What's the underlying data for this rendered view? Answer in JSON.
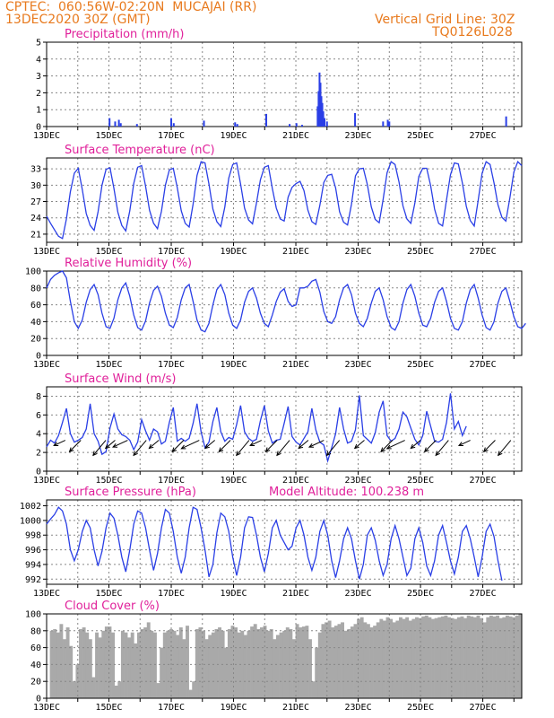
{
  "header": {
    "line1": "CPTEC:  060:56W-02:20N  MUCAJAI (RR)",
    "line2": "13DEC2020 30Z (GMT)",
    "right1": "Vertical Grid Line: 30Z",
    "right2": "TQ0126L028"
  },
  "colors": {
    "header": "#e87a1e",
    "title": "#e0209a",
    "line": "#2a3fe6",
    "cloud": "#a9a9a9",
    "wind_arrow": "#000000"
  },
  "chart_data": [
    {
      "type": "bar",
      "title": "Precipitation (mm/h)",
      "ylim": [
        0,
        5
      ],
      "yticks": [
        "0",
        "1",
        "2",
        "3",
        "4",
        "5"
      ],
      "xticks": [
        "13DEC",
        "15DEC",
        "17DEC",
        "19DEC",
        "21DEC",
        "23DEC",
        "25DEC",
        "27DEC"
      ],
      "x_start_day": 13.25,
      "x_end_day": 28.25,
      "events": [
        [
          15.02,
          0.5
        ],
        [
          15.2,
          0.3
        ],
        [
          15.32,
          0.4
        ],
        [
          15.38,
          0.2
        ],
        [
          15.9,
          0.15
        ],
        [
          17.0,
          0.5
        ],
        [
          17.08,
          0.2
        ],
        [
          18.05,
          0.35
        ],
        [
          19.05,
          0.25
        ],
        [
          19.12,
          0.15
        ],
        [
          20.05,
          0.75
        ],
        [
          20.8,
          0.15
        ],
        [
          21.02,
          0.2
        ],
        [
          21.2,
          0.1
        ],
        [
          21.7,
          1.2
        ],
        [
          21.73,
          2.1
        ],
        [
          21.76,
          3.2
        ],
        [
          21.79,
          2.6
        ],
        [
          21.82,
          1.8
        ],
        [
          21.85,
          1.4
        ],
        [
          21.88,
          0.9
        ],
        [
          21.92,
          0.5
        ],
        [
          22.0,
          0.3
        ],
        [
          22.9,
          0.8
        ],
        [
          23.8,
          0.3
        ],
        [
          23.95,
          0.4
        ],
        [
          24.0,
          0.3
        ],
        [
          27.75,
          0.6
        ]
      ]
    },
    {
      "type": "line",
      "title": "Surface Temperature (nC)",
      "ylim": [
        19.5,
        35
      ],
      "yticks": [
        "21",
        "24",
        "27",
        "30",
        "33"
      ],
      "xticks": [
        "13DEC",
        "15DEC",
        "17DEC",
        "19DEC",
        "21DEC",
        "23DEC",
        "25DEC",
        "27DEC"
      ],
      "x_start_day": 13.25,
      "series": [
        {
          "values": [
            24.3,
            23.0,
            21.8,
            20.6,
            20.2,
            23.8,
            28.8,
            32.2,
            33.1,
            29.2,
            24.8,
            22.6,
            21.7,
            25.1,
            30.0,
            32.9,
            33.2,
            29.4,
            25.0,
            22.6,
            21.6,
            25.3,
            30.3,
            33.3,
            33.6,
            29.8,
            25.4,
            23.0,
            22.0,
            25.2,
            30.0,
            32.8,
            33.1,
            29.5,
            25.3,
            23.0,
            22.3,
            26.5,
            31.8,
            34.3,
            34.1,
            30.2,
            25.6,
            23.3,
            22.4,
            26.0,
            31.3,
            33.8,
            34.1,
            30.2,
            25.8,
            23.6,
            22.9,
            26.7,
            31.0,
            33.3,
            33.6,
            29.4,
            25.8,
            23.8,
            23.4,
            27.8,
            29.6,
            30.3,
            30.7,
            29.0,
            25.4,
            23.3,
            22.8,
            26.3,
            30.5,
            31.8,
            32.0,
            29.5,
            25.1,
            23.2,
            22.7,
            26.5,
            31.7,
            33.0,
            33.1,
            30.1,
            26.0,
            23.7,
            23.1,
            27.4,
            32.3,
            34.3,
            33.8,
            30.6,
            26.2,
            23.8,
            23.0,
            26.7,
            31.6,
            33.1,
            33.1,
            29.9,
            25.6,
            23.0,
            22.5,
            27.3,
            31.9,
            34.1,
            33.9,
            30.4,
            26.1,
            23.5,
            22.5,
            27.2,
            32.2,
            34.3,
            33.8,
            30.4,
            26.4,
            24.1,
            23.4,
            27.7,
            32.4,
            34.3,
            33.6
          ]
        }
      ]
    },
    {
      "type": "line",
      "title": "Relative Humidity (%)",
      "ylim": [
        0,
        100
      ],
      "yticks": [
        "0",
        "20",
        "40",
        "60",
        "80",
        "100"
      ],
      "xticks": [
        "13DEC",
        "15DEC",
        "17DEC",
        "19DEC",
        "21DEC",
        "23DEC",
        "25DEC",
        "27DEC"
      ],
      "x_start_day": 13.25,
      "series": [
        {
          "values": [
            80,
            90,
            95,
            98,
            100,
            92,
            64,
            40,
            32,
            42,
            63,
            78,
            84,
            72,
            50,
            34,
            32,
            44,
            66,
            80,
            86,
            70,
            48,
            33,
            30,
            41,
            62,
            77,
            82,
            70,
            50,
            36,
            33,
            45,
            66,
            80,
            84,
            64,
            42,
            30,
            28,
            38,
            60,
            78,
            84,
            72,
            50,
            36,
            32,
            42,
            63,
            76,
            80,
            68,
            50,
            38,
            34,
            48,
            64,
            75,
            79,
            64,
            58,
            60,
            80,
            80,
            82,
            88,
            90,
            75,
            52,
            40,
            38,
            46,
            66,
            80,
            84,
            72,
            50,
            38,
            34,
            44,
            62,
            76,
            80,
            66,
            46,
            33,
            30,
            40,
            62,
            78,
            84,
            70,
            50,
            36,
            34,
            44,
            63,
            76,
            80,
            64,
            44,
            32,
            30,
            40,
            62,
            78,
            84,
            68,
            48,
            33,
            30,
            40,
            62,
            76,
            80,
            64,
            46,
            34,
            32,
            38
          ]
        }
      ]
    },
    {
      "type": "line",
      "title": "Surface Wind (m/s)",
      "ylim": [
        0,
        9
      ],
      "yticks": [
        "0",
        "2",
        "4",
        "6",
        "8"
      ],
      "xticks": [
        "13DEC",
        "15DEC",
        "17DEC",
        "19DEC",
        "21DEC",
        "23DEC",
        "25DEC",
        "27DEC"
      ],
      "x_start_day": 13.25,
      "series": [
        {
          "values": [
            2.6,
            3.3,
            3.0,
            3.8,
            5.2,
            6.7,
            4.0,
            3.1,
            3.3,
            3.6,
            4.5,
            7.2,
            4.0,
            3.2,
            1.8,
            2.1,
            4.6,
            6.1,
            4.5,
            3.9,
            3.7,
            3.3,
            2.3,
            3.1,
            5.5,
            4.3,
            3.3,
            4.5,
            4.2,
            2.9,
            3.2,
            5.2,
            6.8,
            3.2,
            3.5,
            3.2,
            3.5,
            5.1,
            7.2,
            4.2,
            2.5,
            3.1,
            5.3,
            6.8,
            4.2,
            3.2,
            3.6,
            3.4,
            5.0,
            7.0,
            4.2,
            3.5,
            3.2,
            3.4,
            5.4,
            7.0,
            4.3,
            3.0,
            3.3,
            3.4,
            5.1,
            6.9,
            3.7,
            3.1,
            2.8,
            3.5,
            4.2,
            6.7,
            4.4,
            3.1,
            2.8,
            1.1,
            2.5,
            4.0,
            6.8,
            4.5,
            3.0,
            3.2,
            4.4,
            8.1,
            3.8,
            3.4,
            3.0,
            4.1,
            6.3,
            7.5,
            3.8,
            3.2,
            3.5,
            4.5,
            6.3,
            5.8,
            4.6,
            3.4,
            2.8,
            3.8,
            6.4,
            4.8,
            3.2,
            3.1,
            3.4,
            5.2,
            8.3,
            4.5,
            5.3,
            3.8,
            4.8
          ]
        }
      ],
      "arrow_days": [
        13.6,
        14.1,
        14.9,
        15.2,
        15.6,
        16.2,
        16.6,
        17.4,
        17.9,
        18.4,
        18.9,
        19.5,
        19.9,
        20.4,
        20.8,
        21.4,
        21.9,
        22.4,
        23.2,
        24.1,
        24.5,
        25.0,
        25.5,
        25.9,
        26.6,
        27.4,
        27.9
      ]
    },
    {
      "type": "line",
      "title": "Surface Pressure (hPa)",
      "annotation": "Model Altitude: 100.238 m",
      "ylim": [
        991.3,
        1002.8
      ],
      "yticks": [
        "992",
        "994",
        "996",
        "998",
        "1000",
        "1002"
      ],
      "xticks": [
        "13DEC",
        "15DEC",
        "17DEC",
        "19DEC",
        "21DEC",
        "23DEC",
        "25DEC",
        "27DEC"
      ],
      "x_start_day": 13.25,
      "series": [
        {
          "values": [
            999.5,
            1000.2,
            1000.8,
            1001.8,
            1001.3,
            999.5,
            996.0,
            994.5,
            996.0,
            998.5,
            1000.0,
            999.0,
            996.0,
            993.8,
            995.8,
            999.0,
            1001.0,
            1000.3,
            998.0,
            995.0,
            993.0,
            996.0,
            999.5,
            1001.3,
            1001.0,
            999.0,
            996.0,
            993.2,
            995.5,
            999.0,
            1001.5,
            1001.0,
            998.5,
            995.0,
            992.8,
            995.0,
            999.0,
            1001.8,
            1001.5,
            999.0,
            996.0,
            992.3,
            994.0,
            998.3,
            1001.0,
            1000.5,
            998.5,
            995.0,
            992.5,
            995.0,
            999.0,
            1000.5,
            1000.4,
            998.0,
            995.0,
            993.0,
            995.5,
            999.0,
            1000.0,
            998.0,
            997.0,
            996.0,
            996.5,
            999.0,
            1000.0,
            998.0,
            995.0,
            993.2,
            995.0,
            998.5,
            1000.0,
            998.0,
            994.5,
            992.2,
            994.5,
            997.5,
            999.0,
            997.5,
            994.5,
            992.0,
            994.0,
            998.0,
            999.0,
            997.3,
            994.5,
            992.5,
            994.0,
            997.5,
            999.3,
            997.5,
            995.0,
            992.5,
            993.5,
            997.5,
            999.0,
            997.0,
            993.8,
            992.5,
            994.5,
            998.0,
            999.3,
            997.0,
            994.5,
            992.7,
            995.0,
            998.5,
            999.3,
            997.5,
            995.0,
            992.3,
            995.0,
            998.5,
            999.5,
            997.8,
            994.5,
            991.8
          ]
        }
      ]
    },
    {
      "type": "area",
      "title": "Cloud Cover (%)",
      "ylim": [
        0,
        100
      ],
      "yticks": [
        "0",
        "20",
        "40",
        "60",
        "80",
        "100"
      ],
      "xticks": [
        "13DEC",
        "15DEC",
        "17DEC",
        "19DEC",
        "21DEC",
        "23DEC",
        "25DEC",
        "27DEC"
      ],
      "x_start_day": 13.25,
      "series": [
        {
          "values": [
            0,
            80,
            82,
            78,
            88,
            70,
            84,
            62,
            20,
            40,
            82,
            84,
            78,
            70,
            25,
            78,
            72,
            80,
            85,
            85,
            78,
            15,
            20,
            80,
            78,
            72,
            78,
            65,
            78,
            82,
            84,
            90,
            80,
            78,
            18,
            60,
            78,
            80,
            82,
            80,
            75,
            84,
            70,
            86,
            10,
            20,
            82,
            84,
            80,
            70,
            75,
            78,
            82,
            84,
            80,
            60,
            82,
            86,
            84,
            78,
            80,
            75,
            80,
            85,
            88,
            82,
            84,
            86,
            80,
            82,
            70,
            75,
            78,
            80,
            84,
            82,
            70,
            88,
            84,
            85,
            86,
            70,
            20,
            60,
            78,
            88,
            90,
            92,
            84,
            86,
            88,
            90,
            80,
            82,
            85,
            88,
            94,
            96,
            90,
            88,
            84,
            86,
            90,
            94,
            92,
            96,
            94,
            90,
            92,
            96,
            94,
            96,
            92,
            94,
            96,
            95,
            97,
            98,
            96,
            94,
            95,
            96,
            97,
            98,
            96,
            95,
            94,
            96,
            97,
            95,
            98,
            97,
            96,
            98,
            95,
            90,
            96,
            98,
            97,
            98,
            95,
            96,
            98,
            97,
            96,
            98,
            100
          ]
        }
      ]
    }
  ]
}
